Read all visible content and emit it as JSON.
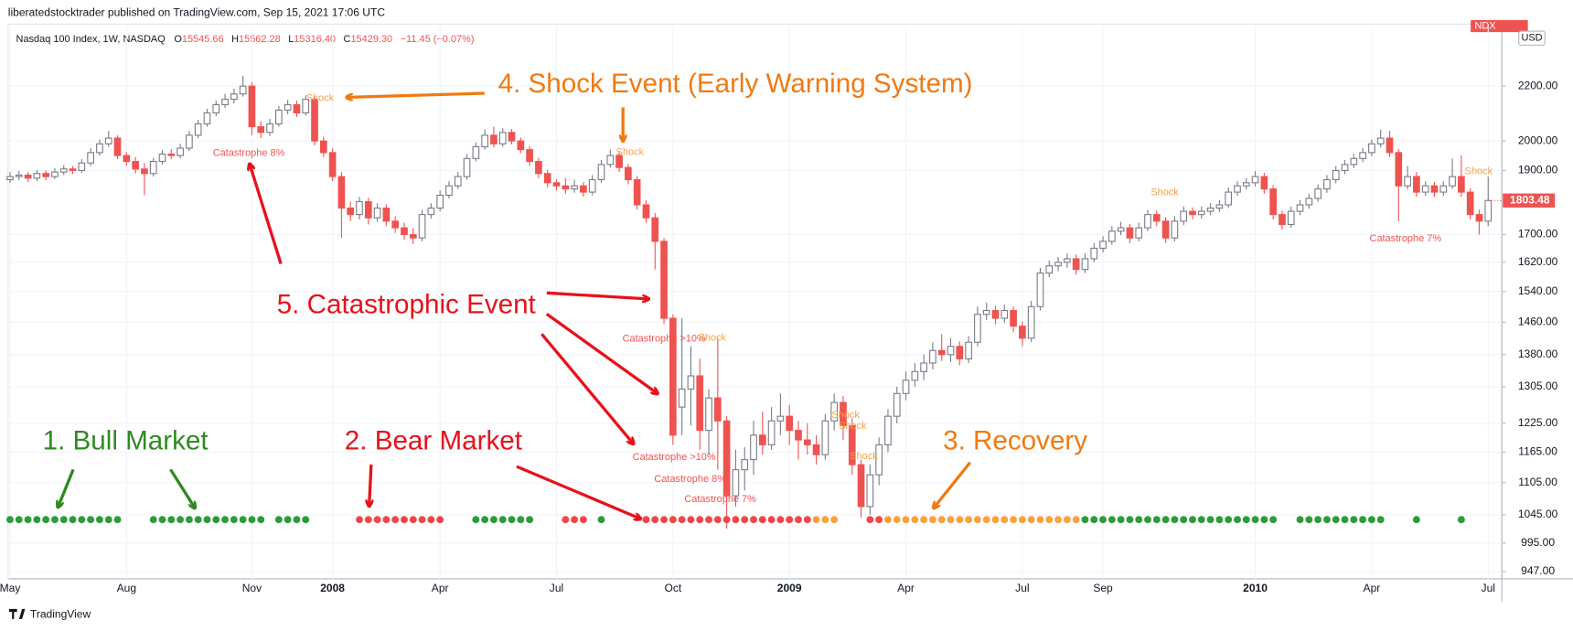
{
  "header": {
    "publisher": "liberatedstocktrader published on TradingView.com, Sep 15, 2021 17:06 UTC",
    "symbol": "Nasdaq 100 Index, 1W, NASDAQ",
    "ohlc": [
      {
        "label": "O",
        "value": "15545.66"
      },
      {
        "label": "H",
        "value": "15562.28"
      },
      {
        "label": "L",
        "value": "15316.40"
      },
      {
        "label": "C",
        "value": "15429.30"
      }
    ],
    "change": "−11.45 (−0.07%)",
    "ticker": "NDX",
    "currency": "USD"
  },
  "chart_data": {
    "type": "candlestick",
    "log_scale": true,
    "grid": true,
    "up_color": "#26a69a",
    "down_color": "#ef5350",
    "ylim": [
      935,
      2450
    ],
    "yticks": [
      {
        "value": 947,
        "label": "947.00"
      },
      {
        "value": 995,
        "label": "995.00"
      },
      {
        "value": 1045,
        "label": "1045.00"
      },
      {
        "value": 1105,
        "label": "1105.00"
      },
      {
        "value": 1165,
        "label": "1165.00"
      },
      {
        "value": 1225,
        "label": "1225.00"
      },
      {
        "value": 1305,
        "label": "1305.00"
      },
      {
        "value": 1380,
        "label": "1380.00"
      },
      {
        "value": 1460,
        "label": "1460.00"
      },
      {
        "value": 1540,
        "label": "1540.00"
      },
      {
        "value": 1620,
        "label": "1620.00"
      },
      {
        "value": 1700,
        "label": "1700.00"
      },
      {
        "value": 1900,
        "label": "1900.00"
      },
      {
        "value": 2000,
        "label": "2000.00"
      },
      {
        "value": 2200,
        "label": "2200.00"
      }
    ],
    "categories": [
      "May",
      null,
      null,
      null,
      null,
      null,
      null,
      null,
      null,
      null,
      null,
      null,
      null,
      "Aug",
      null,
      null,
      null,
      null,
      null,
      null,
      null,
      null,
      null,
      null,
      null,
      null,
      null,
      "Nov",
      null,
      null,
      null,
      null,
      null,
      null,
      null,
      null,
      "2008",
      null,
      null,
      null,
      null,
      null,
      null,
      null,
      null,
      null,
      null,
      null,
      "Apr",
      null,
      null,
      null,
      null,
      null,
      null,
      null,
      null,
      null,
      null,
      null,
      null,
      "Jul",
      null,
      null,
      null,
      null,
      null,
      null,
      null,
      null,
      null,
      null,
      null,
      null,
      "Oct",
      null,
      null,
      null,
      null,
      null,
      null,
      null,
      null,
      null,
      null,
      null,
      null,
      "2009",
      null,
      null,
      null,
      null,
      null,
      null,
      null,
      null,
      null,
      null,
      null,
      null,
      "Apr",
      null,
      null,
      null,
      null,
      null,
      null,
      null,
      null,
      null,
      null,
      null,
      null,
      "Jul",
      null,
      null,
      null,
      null,
      null,
      null,
      null,
      null,
      "Sep",
      null,
      null,
      null,
      null,
      null,
      null,
      null,
      null,
      null,
      null,
      null,
      null,
      null,
      null,
      null,
      null,
      "2010",
      null,
      null,
      null,
      null,
      null,
      null,
      null,
      null,
      null,
      null,
      null,
      null,
      "Apr",
      null,
      null,
      null,
      null,
      null,
      null,
      null,
      null,
      null,
      null,
      null,
      null,
      "Jul"
    ],
    "ohlc": [
      [
        1870,
        1895,
        1860,
        1880
      ],
      [
        1880,
        1898,
        1868,
        1885
      ],
      [
        1885,
        1895,
        1862,
        1875
      ],
      [
        1875,
        1902,
        1865,
        1890
      ],
      [
        1890,
        1900,
        1868,
        1880
      ],
      [
        1880,
        1908,
        1872,
        1895
      ],
      [
        1895,
        1918,
        1885,
        1905
      ],
      [
        1905,
        1915,
        1888,
        1900
      ],
      [
        1900,
        1938,
        1892,
        1925
      ],
      [
        1925,
        1975,
        1915,
        1960
      ],
      [
        1960,
        2005,
        1950,
        1990
      ],
      [
        1990,
        2035,
        1980,
        2010
      ],
      [
        2010,
        2020,
        1938,
        1950
      ],
      [
        1950,
        1962,
        1915,
        1930
      ],
      [
        1930,
        1945,
        1890,
        1905
      ],
      [
        1905,
        1925,
        1820,
        1890
      ],
      [
        1890,
        1942,
        1880,
        1930
      ],
      [
        1930,
        1968,
        1920,
        1955
      ],
      [
        1955,
        1972,
        1938,
        1950
      ],
      [
        1950,
        1990,
        1940,
        1975
      ],
      [
        1975,
        2035,
        1965,
        2020
      ],
      [
        2020,
        2075,
        2010,
        2060
      ],
      [
        2060,
        2115,
        2050,
        2100
      ],
      [
        2100,
        2145,
        2088,
        2130
      ],
      [
        2130,
        2170,
        2118,
        2150
      ],
      [
        2150,
        2190,
        2135,
        2170
      ],
      [
        2170,
        2240,
        2160,
        2200
      ],
      [
        2200,
        2215,
        2020,
        2050
      ],
      [
        2050,
        2070,
        2010,
        2030
      ],
      [
        2030,
        2078,
        2018,
        2060
      ],
      [
        2060,
        2125,
        2050,
        2110
      ],
      [
        2110,
        2148,
        2095,
        2130
      ],
      [
        2130,
        2145,
        2085,
        2100
      ],
      [
        2100,
        2165,
        2090,
        2150
      ],
      [
        2150,
        2160,
        1985,
        2000
      ],
      [
        2000,
        2015,
        1945,
        1960
      ],
      [
        1960,
        1975,
        1865,
        1880
      ],
      [
        1880,
        1895,
        1690,
        1780
      ],
      [
        1780,
        1800,
        1740,
        1760
      ],
      [
        1760,
        1815,
        1745,
        1800
      ],
      [
        1800,
        1812,
        1730,
        1750
      ],
      [
        1750,
        1795,
        1738,
        1780
      ],
      [
        1780,
        1792,
        1725,
        1740
      ],
      [
        1740,
        1755,
        1705,
        1720
      ],
      [
        1720,
        1735,
        1685,
        1700
      ],
      [
        1700,
        1720,
        1672,
        1690
      ],
      [
        1690,
        1775,
        1680,
        1760
      ],
      [
        1760,
        1795,
        1748,
        1780
      ],
      [
        1780,
        1835,
        1770,
        1820
      ],
      [
        1820,
        1865,
        1810,
        1850
      ],
      [
        1850,
        1895,
        1840,
        1880
      ],
      [
        1880,
        1955,
        1870,
        1940
      ],
      [
        1940,
        1995,
        1930,
        1980
      ],
      [
        1980,
        2040,
        1970,
        2020
      ],
      [
        2020,
        2050,
        1978,
        1990
      ],
      [
        1990,
        2045,
        1980,
        2030
      ],
      [
        2030,
        2042,
        1988,
        2000
      ],
      [
        2000,
        2012,
        1958,
        1970
      ],
      [
        1970,
        1982,
        1915,
        1930
      ],
      [
        1930,
        1942,
        1875,
        1890
      ],
      [
        1890,
        1902,
        1845,
        1860
      ],
      [
        1860,
        1872,
        1835,
        1850
      ],
      [
        1850,
        1875,
        1825,
        1840
      ],
      [
        1840,
        1870,
        1828,
        1850
      ],
      [
        1850,
        1862,
        1815,
        1830
      ],
      [
        1830,
        1885,
        1820,
        1870
      ],
      [
        1870,
        1935,
        1860,
        1920
      ],
      [
        1920,
        1970,
        1910,
        1950
      ],
      [
        1950,
        1962,
        1895,
        1910
      ],
      [
        1910,
        1922,
        1855,
        1870
      ],
      [
        1870,
        1882,
        1775,
        1790
      ],
      [
        1790,
        1805,
        1735,
        1750
      ],
      [
        1750,
        1765,
        1600,
        1680
      ],
      [
        1680,
        1690,
        1455,
        1470
      ],
      [
        1470,
        1480,
        1180,
        1200
      ],
      [
        1260,
        1470,
        1200,
        1300
      ],
      [
        1300,
        1400,
        1220,
        1330
      ],
      [
        1330,
        1370,
        1170,
        1210
      ],
      [
        1210,
        1300,
        1160,
        1280
      ],
      [
        1280,
        1420,
        1130,
        1230
      ],
      [
        1230,
        1240,
        1020,
        1080
      ],
      [
        1080,
        1170,
        1060,
        1130
      ],
      [
        1130,
        1175,
        1090,
        1150
      ],
      [
        1150,
        1230,
        1120,
        1200
      ],
      [
        1200,
        1250,
        1160,
        1180
      ],
      [
        1180,
        1260,
        1170,
        1230
      ],
      [
        1230,
        1290,
        1200,
        1240
      ],
      [
        1240,
        1265,
        1180,
        1210
      ],
      [
        1210,
        1230,
        1150,
        1190
      ],
      [
        1190,
        1225,
        1160,
        1180
      ],
      [
        1180,
        1200,
        1140,
        1160
      ],
      [
        1160,
        1245,
        1150,
        1230
      ],
      [
        1230,
        1290,
        1210,
        1270
      ],
      [
        1270,
        1285,
        1190,
        1220
      ],
      [
        1220,
        1235,
        1120,
        1140
      ],
      [
        1140,
        1150,
        1040,
        1060
      ],
      [
        1060,
        1140,
        1045,
        1120
      ],
      [
        1120,
        1195,
        1100,
        1180
      ],
      [
        1180,
        1255,
        1165,
        1240
      ],
      [
        1240,
        1305,
        1225,
        1290
      ],
      [
        1290,
        1340,
        1275,
        1320
      ],
      [
        1320,
        1360,
        1305,
        1340
      ],
      [
        1340,
        1380,
        1320,
        1360
      ],
      [
        1360,
        1410,
        1345,
        1390
      ],
      [
        1390,
        1430,
        1365,
        1380
      ],
      [
        1380,
        1420,
        1362,
        1400
      ],
      [
        1400,
        1412,
        1355,
        1370
      ],
      [
        1370,
        1425,
        1360,
        1410
      ],
      [
        1410,
        1500,
        1400,
        1480
      ],
      [
        1480,
        1510,
        1465,
        1490
      ],
      [
        1490,
        1502,
        1455,
        1470
      ],
      [
        1470,
        1505,
        1458,
        1490
      ],
      [
        1490,
        1500,
        1435,
        1450
      ],
      [
        1450,
        1462,
        1400,
        1420
      ],
      [
        1420,
        1515,
        1410,
        1500
      ],
      [
        1500,
        1605,
        1490,
        1590
      ],
      [
        1590,
        1625,
        1578,
        1610
      ],
      [
        1610,
        1635,
        1595,
        1620
      ],
      [
        1620,
        1645,
        1605,
        1630
      ],
      [
        1630,
        1642,
        1585,
        1600
      ],
      [
        1600,
        1645,
        1590,
        1630
      ],
      [
        1630,
        1675,
        1620,
        1660
      ],
      [
        1660,
        1695,
        1648,
        1680
      ],
      [
        1680,
        1725,
        1670,
        1710
      ],
      [
        1710,
        1738,
        1698,
        1720
      ],
      [
        1720,
        1732,
        1675,
        1690
      ],
      [
        1690,
        1735,
        1680,
        1720
      ],
      [
        1720,
        1775,
        1710,
        1760
      ],
      [
        1760,
        1772,
        1725,
        1740
      ],
      [
        1740,
        1752,
        1675,
        1690
      ],
      [
        1690,
        1755,
        1680,
        1740
      ],
      [
        1740,
        1785,
        1728,
        1770
      ],
      [
        1770,
        1782,
        1745,
        1760
      ],
      [
        1760,
        1785,
        1748,
        1770
      ],
      [
        1770,
        1795,
        1758,
        1780
      ],
      [
        1780,
        1805,
        1768,
        1790
      ],
      [
        1790,
        1845,
        1780,
        1830
      ],
      [
        1830,
        1865,
        1818,
        1850
      ],
      [
        1850,
        1875,
        1838,
        1860
      ],
      [
        1860,
        1898,
        1848,
        1880
      ],
      [
        1880,
        1892,
        1825,
        1840
      ],
      [
        1840,
        1852,
        1745,
        1760
      ],
      [
        1760,
        1772,
        1715,
        1730
      ],
      [
        1730,
        1785,
        1720,
        1770
      ],
      [
        1770,
        1805,
        1758,
        1790
      ],
      [
        1790,
        1825,
        1778,
        1810
      ],
      [
        1810,
        1855,
        1800,
        1840
      ],
      [
        1840,
        1885,
        1828,
        1870
      ],
      [
        1870,
        1915,
        1858,
        1900
      ],
      [
        1900,
        1935,
        1888,
        1920
      ],
      [
        1920,
        1955,
        1908,
        1940
      ],
      [
        1940,
        1975,
        1928,
        1960
      ],
      [
        1960,
        2005,
        1948,
        1990
      ],
      [
        1990,
        2040,
        1978,
        2010
      ],
      [
        2010,
        2035,
        1945,
        1960
      ],
      [
        1960,
        1972,
        1740,
        1850
      ],
      [
        1850,
        1915,
        1838,
        1880
      ],
      [
        1880,
        1895,
        1815,
        1830
      ],
      [
        1830,
        1865,
        1818,
        1850
      ],
      [
        1850,
        1862,
        1815,
        1830
      ],
      [
        1830,
        1865,
        1818,
        1850
      ],
      [
        1850,
        1940,
        1840,
        1880
      ],
      [
        1880,
        1950,
        1815,
        1830
      ],
      [
        1830,
        1842,
        1745,
        1760
      ],
      [
        1760,
        1775,
        1700,
        1740
      ],
      [
        1740,
        1880,
        1725,
        1803.48
      ]
    ],
    "signal_colors": [
      "#2e9b3a",
      "#2e9b3a",
      "#2e9b3a",
      "#2e9b3a",
      "#2e9b3a",
      "#2e9b3a",
      "#2e9b3a",
      "#2e9b3a",
      "#2e9b3a",
      "#2e9b3a",
      "#2e9b3a",
      "#2e9b3a",
      "#2e9b3a",
      null,
      null,
      null,
      "#2e9b3a",
      "#2e9b3a",
      "#2e9b3a",
      "#2e9b3a",
      "#2e9b3a",
      "#2e9b3a",
      "#2e9b3a",
      "#2e9b3a",
      "#2e9b3a",
      "#2e9b3a",
      "#2e9b3a",
      "#2e9b3a",
      "#2e9b3a",
      null,
      "#2e9b3a",
      "#2e9b3a",
      "#2e9b3a",
      "#2e9b3a",
      null,
      null,
      null,
      null,
      null,
      "#f0474a",
      "#f0474a",
      "#f0474a",
      "#f0474a",
      "#f0474a",
      "#f0474a",
      "#f0474a",
      "#f0474a",
      "#f0474a",
      "#f0474a",
      null,
      null,
      null,
      "#2e9b3a",
      "#2e9b3a",
      "#2e9b3a",
      "#2e9b3a",
      "#2e9b3a",
      "#2e9b3a",
      "#2e9b3a",
      null,
      null,
      null,
      "#f0474a",
      "#f0474a",
      "#f0474a",
      null,
      "#2e9b3a",
      null,
      null,
      null,
      null,
      "#f0474a",
      "#f0474a",
      "#f0474a",
      "#f0474a",
      "#f0474a",
      "#f0474a",
      "#f0474a",
      "#f0474a",
      "#f0474a",
      "#f0474a",
      "#f0474a",
      "#f0474a",
      "#f0474a",
      "#f0474a",
      "#f0474a",
      "#f0474a",
      "#f0474a",
      "#f0474a",
      "#f0474a",
      "#f9a23f",
      "#f9a23f",
      "#f9a23f",
      null,
      null,
      null,
      "#f0474a",
      "#f0474a",
      "#f9a23f",
      "#f9a23f",
      "#f9a23f",
      "#f9a23f",
      "#f9a23f",
      "#f9a23f",
      "#f9a23f",
      "#f9a23f",
      "#f9a23f",
      "#f9a23f",
      "#f9a23f",
      "#f9a23f",
      "#f9a23f",
      "#f9a23f",
      "#f9a23f",
      "#f9a23f",
      "#f9a23f",
      "#f9a23f",
      "#f9a23f",
      "#f9a23f",
      "#f9a23f",
      "#f9a23f",
      "#2e9b3a",
      "#2e9b3a",
      "#2e9b3a",
      "#2e9b3a",
      "#2e9b3a",
      "#2e9b3a",
      "#2e9b3a",
      "#2e9b3a",
      "#2e9b3a",
      "#2e9b3a",
      "#2e9b3a",
      "#2e9b3a",
      "#2e9b3a",
      "#2e9b3a",
      "#2e9b3a",
      "#2e9b3a",
      "#2e9b3a",
      "#2e9b3a",
      "#2e9b3a",
      "#2e9b3a",
      "#2e9b3a",
      "#2e9b3a",
      null,
      null,
      "#2e9b3a",
      "#2e9b3a",
      "#2e9b3a",
      "#2e9b3a",
      "#2e9b3a",
      "#2e9b3a",
      "#2e9b3a",
      "#2e9b3a",
      "#2e9b3a",
      "#2e9b3a",
      null,
      null,
      null,
      "#2e9b3a",
      null,
      null,
      null,
      null,
      "#2e9b3a",
      null,
      null,
      null
    ],
    "annotations": [
      {
        "text": "Shock",
        "color": "#f7a046"
      },
      {
        "text": "Catastrophe 8%",
        "color": "#ef5350"
      },
      {
        "text": "Shock",
        "color": "#f7a046"
      },
      {
        "text": "Catastrophe >10%",
        "color": "#ef5350"
      },
      {
        "text": "Shock",
        "color": "#f7a046"
      },
      {
        "text": "Catastrophe >10%",
        "color": "#ef5350"
      },
      {
        "text": "Catastrophe 8%",
        "color": "#ef5350"
      },
      {
        "text": "Catastrophe 7%",
        "color": "#ef5350"
      },
      {
        "text": "Shock",
        "color": "#f7a046"
      },
      {
        "text": "Shock",
        "color": "#f7a046"
      },
      {
        "text": "Shock",
        "color": "#f7a046"
      },
      {
        "text": "Shock",
        "color": "#f7a046"
      },
      {
        "text": "Catastrophe 7%",
        "color": "#ef5350"
      },
      {
        "text": "Shock",
        "color": "#f7a046"
      }
    ],
    "callouts": [
      {
        "text": "4. Shock Event (Early Warning System)",
        "color": "#f07a10"
      },
      {
        "text": "5. Catastrophic Event",
        "color": "#e8111a"
      },
      {
        "text": "1. Bull Market",
        "color": "#2e8b1f"
      },
      {
        "text": "2. Bear Market",
        "color": "#e8111a"
      },
      {
        "text": "3. Recovery",
        "color": "#f07a10"
      }
    ]
  },
  "footer": {
    "brand": "TradingView"
  }
}
